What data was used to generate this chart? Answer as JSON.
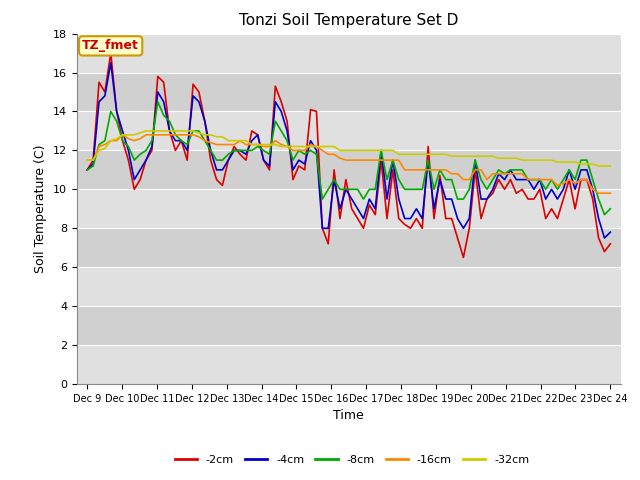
{
  "title": "Tonzi Soil Temperature Set D",
  "xlabel": "Time",
  "ylabel": "Soil Temperature (C)",
  "annotation_label": "TZ_fmet",
  "annotation_bg": "#ffffcc",
  "annotation_border": "#cc9900",
  "annotation_text_color": "#cc0000",
  "ylim": [
    0,
    18
  ],
  "yticks": [
    0,
    2,
    4,
    6,
    8,
    10,
    12,
    14,
    16,
    18
  ],
  "colors": {
    "-2cm": "#dd0000",
    "-4cm": "#0000cc",
    "-8cm": "#00aa00",
    "-16cm": "#ff8800",
    "-32cm": "#cccc00"
  },
  "legend_labels": [
    "-2cm",
    "-4cm",
    "-8cm",
    "-16cm",
    "-32cm"
  ],
  "x_tick_labels": [
    "Dec 9",
    "Dec 10",
    "Dec 11",
    "Dec 12",
    "Dec 13",
    "Dec 14",
    "Dec 15",
    "Dec 16",
    "Dec 17",
    "Dec 18",
    "Dec 19",
    "Dec 20",
    "Dec 21",
    "Dec 22",
    "Dec 23",
    "Dec 24"
  ],
  "band_colors": [
    "#e0e0e0",
    "#d0d0d0"
  ],
  "background_fig": "#ffffff",
  "linewidth": 1.2,
  "series": {
    "-2cm": [
      11.0,
      11.5,
      15.5,
      15.0,
      17.0,
      14.0,
      12.5,
      11.5,
      10.0,
      10.5,
      11.5,
      12.0,
      15.8,
      15.5,
      13.0,
      12.0,
      12.5,
      11.5,
      15.4,
      15.0,
      13.5,
      11.5,
      10.5,
      10.2,
      11.5,
      12.2,
      11.8,
      11.5,
      13.0,
      12.8,
      11.5,
      11.0,
      15.3,
      14.5,
      13.5,
      10.5,
      11.2,
      11.0,
      14.1,
      14.0,
      8.0,
      7.2,
      11.0,
      8.5,
      10.5,
      9.0,
      8.5,
      8.0,
      9.2,
      8.7,
      11.5,
      8.5,
      11.0,
      8.5,
      8.2,
      8.0,
      8.5,
      8.0,
      12.2,
      8.5,
      10.7,
      8.5,
      8.5,
      7.5,
      6.5,
      8.0,
      11.0,
      8.5,
      9.5,
      9.8,
      10.5,
      10.0,
      10.5,
      9.8,
      10.0,
      9.5,
      9.5,
      10.0,
      8.5,
      9.0,
      8.5,
      9.5,
      10.5,
      9.0,
      10.5,
      10.5,
      9.5,
      7.5,
      6.8,
      7.2
    ],
    "-4cm": [
      11.0,
      11.3,
      14.5,
      14.8,
      16.5,
      14.0,
      13.0,
      12.0,
      10.5,
      11.0,
      11.5,
      12.2,
      15.0,
      14.5,
      13.0,
      12.5,
      12.5,
      12.0,
      14.8,
      14.5,
      13.5,
      12.0,
      11.0,
      11.0,
      11.5,
      12.0,
      12.0,
      11.8,
      12.5,
      12.8,
      11.5,
      11.2,
      14.5,
      14.0,
      13.0,
      11.0,
      11.5,
      11.3,
      12.5,
      12.0,
      8.0,
      8.0,
      10.5,
      9.0,
      10.0,
      9.5,
      9.0,
      8.5,
      9.5,
      9.0,
      12.0,
      9.5,
      11.5,
      9.5,
      8.5,
      8.5,
      9.0,
      8.5,
      11.5,
      9.0,
      10.5,
      9.5,
      9.5,
      8.5,
      8.0,
      8.5,
      11.5,
      9.5,
      9.5,
      10.0,
      10.8,
      10.5,
      11.0,
      10.5,
      10.5,
      10.5,
      10.0,
      10.5,
      9.5,
      10.0,
      9.5,
      10.0,
      11.0,
      10.0,
      11.0,
      11.0,
      10.0,
      8.5,
      7.5,
      7.8
    ],
    "-8cm": [
      11.0,
      11.2,
      12.3,
      12.5,
      14.0,
      13.5,
      12.5,
      12.2,
      11.5,
      11.8,
      12.0,
      12.5,
      14.5,
      13.8,
      13.5,
      12.8,
      12.5,
      12.3,
      13.0,
      13.0,
      12.5,
      12.0,
      11.5,
      11.5,
      11.8,
      12.0,
      12.0,
      12.0,
      12.0,
      12.2,
      12.0,
      11.8,
      13.5,
      13.0,
      12.5,
      11.5,
      12.0,
      11.8,
      12.0,
      11.8,
      9.5,
      10.0,
      10.5,
      10.0,
      10.0,
      10.0,
      10.0,
      9.5,
      10.0,
      10.0,
      12.0,
      10.5,
      11.5,
      10.5,
      10.0,
      10.0,
      10.0,
      10.0,
      11.5,
      10.0,
      11.0,
      10.5,
      10.5,
      9.5,
      9.5,
      10.0,
      11.5,
      10.5,
      10.0,
      10.5,
      11.0,
      10.8,
      11.0,
      11.0,
      11.0,
      10.5,
      10.5,
      10.5,
      10.0,
      10.5,
      10.0,
      10.5,
      11.0,
      10.5,
      11.5,
      11.5,
      10.5,
      9.5,
      8.7,
      9.0
    ],
    "-16cm": [
      11.5,
      11.5,
      12.2,
      12.3,
      12.5,
      12.5,
      12.8,
      12.6,
      12.5,
      12.6,
      12.8,
      12.8,
      12.8,
      12.8,
      12.8,
      12.8,
      12.8,
      12.8,
      12.8,
      12.7,
      12.5,
      12.4,
      12.3,
      12.3,
      12.3,
      12.3,
      12.5,
      12.3,
      12.3,
      12.3,
      12.2,
      12.2,
      12.5,
      12.3,
      12.2,
      12.0,
      12.0,
      12.0,
      12.3,
      12.2,
      12.0,
      11.8,
      11.8,
      11.6,
      11.5,
      11.5,
      11.5,
      11.5,
      11.5,
      11.5,
      11.5,
      11.5,
      11.5,
      11.5,
      11.0,
      11.0,
      11.0,
      11.0,
      11.0,
      11.0,
      11.0,
      11.0,
      10.8,
      10.8,
      10.5,
      10.5,
      11.0,
      11.0,
      10.5,
      10.8,
      10.8,
      10.8,
      10.8,
      10.8,
      10.8,
      10.5,
      10.5,
      10.5,
      10.5,
      10.5,
      10.2,
      10.3,
      10.5,
      10.3,
      10.5,
      10.5,
      10.0,
      9.8,
      9.8,
      9.8
    ],
    "-32cm": [
      11.5,
      11.5,
      12.0,
      12.1,
      12.5,
      12.6,
      12.8,
      12.8,
      12.8,
      12.9,
      13.0,
      13.0,
      13.0,
      13.0,
      13.0,
      13.0,
      13.0,
      13.0,
      13.0,
      12.9,
      12.8,
      12.8,
      12.7,
      12.7,
      12.5,
      12.5,
      12.5,
      12.5,
      12.3,
      12.3,
      12.3,
      12.3,
      12.3,
      12.2,
      12.2,
      12.2,
      12.2,
      12.2,
      12.2,
      12.2,
      12.2,
      12.2,
      12.2,
      12.0,
      12.0,
      12.0,
      12.0,
      12.0,
      12.0,
      12.0,
      12.0,
      12.0,
      12.0,
      11.8,
      11.8,
      11.8,
      11.8,
      11.8,
      11.8,
      11.8,
      11.8,
      11.8,
      11.7,
      11.7,
      11.7,
      11.7,
      11.7,
      11.7,
      11.7,
      11.7,
      11.6,
      11.6,
      11.6,
      11.6,
      11.5,
      11.5,
      11.5,
      11.5,
      11.5,
      11.5,
      11.4,
      11.4,
      11.4,
      11.4,
      11.3,
      11.3,
      11.3,
      11.2,
      11.2,
      11.2
    ]
  }
}
